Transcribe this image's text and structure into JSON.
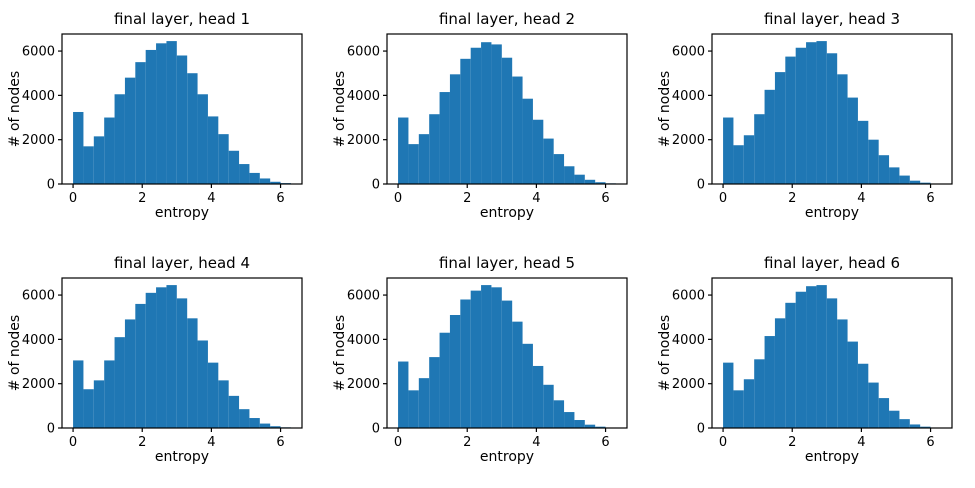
{
  "figure": {
    "background": "#ffffff",
    "bar_color": "#1f77b4",
    "axis_color": "#000000",
    "text_color": "#000000",
    "layout": "2 rows x 3 columns of histograms"
  },
  "chart_data": [
    {
      "type": "histogram",
      "title": "final layer, head 1",
      "xlabel": "entropy",
      "ylabel": "# of nodes",
      "bin_start": 0,
      "bin_width": 0.3,
      "counts": [
        3250,
        1700,
        2150,
        3000,
        4050,
        4800,
        5500,
        6050,
        6350,
        6450,
        5800,
        5000,
        4050,
        3050,
        2250,
        1500,
        900,
        500,
        250,
        100,
        40
      ],
      "xlim": [
        -0.32,
        6.62
      ],
      "ylim": [
        0,
        6770
      ],
      "xticks": [
        0,
        2,
        4,
        6
      ],
      "yticks": [
        0,
        2000,
        4000,
        6000
      ],
      "grid": false,
      "legend": false
    },
    {
      "type": "histogram",
      "title": "final layer, head 2",
      "xlabel": "entropy",
      "ylabel": "# of nodes",
      "bin_start": 0,
      "bin_width": 0.3,
      "counts": [
        3000,
        1800,
        2250,
        3150,
        4150,
        4950,
        5650,
        6150,
        6400,
        6300,
        5700,
        4850,
        3850,
        2900,
        2050,
        1350,
        800,
        420,
        190,
        80,
        30
      ],
      "xlim": [
        -0.32,
        6.62
      ],
      "ylim": [
        0,
        6770
      ],
      "xticks": [
        0,
        2,
        4,
        6
      ],
      "yticks": [
        0,
        2000,
        4000,
        6000
      ],
      "grid": false,
      "legend": false
    },
    {
      "type": "histogram",
      "title": "final layer, head 3",
      "xlabel": "entropy",
      "ylabel": "# of nodes",
      "bin_start": 0,
      "bin_width": 0.3,
      "counts": [
        3000,
        1750,
        2200,
        3150,
        4250,
        5050,
        5750,
        6150,
        6400,
        6450,
        5900,
        4950,
        3900,
        2850,
        2000,
        1300,
        750,
        380,
        150,
        60,
        20
      ],
      "xlim": [
        -0.32,
        6.62
      ],
      "ylim": [
        0,
        6770
      ],
      "xticks": [
        0,
        2,
        4,
        6
      ],
      "yticks": [
        0,
        2000,
        4000,
        6000
      ],
      "grid": false,
      "legend": false
    },
    {
      "type": "histogram",
      "title": "final layer, head 4",
      "xlabel": "entropy",
      "ylabel": "# of nodes",
      "bin_start": 0,
      "bin_width": 0.3,
      "counts": [
        3050,
        1750,
        2150,
        3050,
        4100,
        4900,
        5600,
        6100,
        6350,
        6450,
        5850,
        4950,
        3950,
        2950,
        2150,
        1450,
        850,
        450,
        200,
        80,
        30
      ],
      "xlim": [
        -0.32,
        6.62
      ],
      "ylim": [
        0,
        6770
      ],
      "xticks": [
        0,
        2,
        4,
        6
      ],
      "yticks": [
        0,
        2000,
        4000,
        6000
      ],
      "grid": false,
      "legend": false
    },
    {
      "type": "histogram",
      "title": "final layer, head 5",
      "xlabel": "entropy",
      "ylabel": "# of nodes",
      "bin_start": 0,
      "bin_width": 0.3,
      "counts": [
        3000,
        1700,
        2250,
        3200,
        4300,
        5100,
        5800,
        6200,
        6450,
        6350,
        5750,
        4800,
        3800,
        2800,
        1950,
        1250,
        720,
        360,
        150,
        60,
        20
      ],
      "xlim": [
        -0.32,
        6.62
      ],
      "ylim": [
        0,
        6770
      ],
      "xticks": [
        0,
        2,
        4,
        6
      ],
      "yticks": [
        0,
        2000,
        4000,
        6000
      ],
      "grid": false,
      "legend": false
    },
    {
      "type": "histogram",
      "title": "final layer, head 6",
      "xlabel": "entropy",
      "ylabel": "# of nodes",
      "bin_start": 0,
      "bin_width": 0.3,
      "counts": [
        2950,
        1700,
        2200,
        3100,
        4150,
        4950,
        5650,
        6150,
        6400,
        6450,
        5850,
        4900,
        3900,
        2900,
        2050,
        1350,
        780,
        400,
        160,
        60,
        20
      ],
      "xlim": [
        -0.32,
        6.62
      ],
      "ylim": [
        0,
        6770
      ],
      "xticks": [
        0,
        2,
        4,
        6
      ],
      "yticks": [
        0,
        2000,
        4000,
        6000
      ],
      "grid": false,
      "legend": false
    }
  ]
}
